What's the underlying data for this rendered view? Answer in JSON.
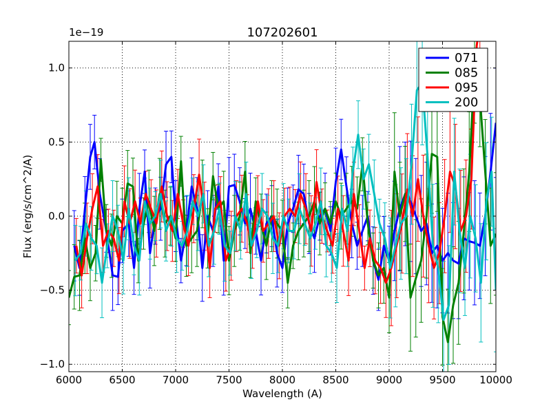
{
  "chart_data": {
    "type": "line",
    "title": "107202601",
    "xlabel": "Wavelength (A)",
    "ylabel": "Flux (erg/s/cm^2/A)",
    "offset_text": "1e−19",
    "xlim": [
      6000,
      10000
    ],
    "ylim": [
      -1.05,
      1.18
    ],
    "xticks": [
      6000,
      6500,
      7000,
      7500,
      8000,
      8500,
      9000,
      9500,
      10000
    ],
    "xtick_labels": [
      "6000",
      "6500",
      "7000",
      "7500",
      "8000",
      "8500",
      "9000",
      "9500",
      "10000"
    ],
    "yticks": [
      -1.0,
      -0.5,
      0.0,
      0.5,
      1.0
    ],
    "ytick_labels": [
      "−1.0",
      "−0.5",
      "0.0",
      "0.5",
      "1.0"
    ],
    "grid": true,
    "legend_position": "top-right",
    "series": [
      {
        "name": "071",
        "color": "#0000ff",
        "x": [
          6050,
          6100,
          6150,
          6200,
          6240,
          6290,
          6350,
          6410,
          6460,
          6500,
          6560,
          6610,
          6660,
          6710,
          6760,
          6810,
          6860,
          6910,
          6960,
          7000,
          7050,
          7100,
          7150,
          7200,
          7250,
          7300,
          7350,
          7400,
          7450,
          7500,
          7550,
          7600,
          7650,
          7700,
          7750,
          7800,
          7850,
          7900,
          7950,
          8000,
          8050,
          8100,
          8150,
          8200,
          8250,
          8300,
          8350,
          8400,
          8450,
          8500,
          8550,
          8600,
          8650,
          8700,
          8750,
          8800,
          8850,
          8900,
          8950,
          9000,
          9050,
          9100,
          9150,
          9200,
          9250,
          9300,
          9350,
          9400,
          9450,
          9500,
          9550,
          9600,
          9650,
          9700,
          9750,
          9800,
          9850,
          9900,
          9950,
          10000
        ],
        "y": [
          -0.2,
          -0.35,
          0.05,
          0.4,
          0.5,
          0.15,
          -0.1,
          -0.4,
          -0.41,
          -0.1,
          -0.05,
          -0.35,
          0.05,
          0.3,
          -0.25,
          0.0,
          0.05,
          0.35,
          0.4,
          0.0,
          -0.3,
          -0.1,
          0.2,
          0.05,
          -0.35,
          0.0,
          -0.1,
          0.2,
          -0.3,
          0.2,
          0.21,
          0.1,
          -0.05,
          0.05,
          -0.1,
          -0.3,
          -0.05,
          0.0,
          -0.25,
          -0.35,
          -0.05,
          0.05,
          0.18,
          0.15,
          -0.05,
          -0.15,
          0.0,
          0.05,
          -0.1,
          0.23,
          0.45,
          0.2,
          -0.05,
          -0.2,
          -0.1,
          0.0,
          -0.3,
          -0.43,
          -0.2,
          -0.3,
          -0.1,
          0.05,
          0.15,
          0.1,
          0.0,
          -0.1,
          -0.05,
          -0.25,
          -0.2,
          -0.3,
          -0.25,
          -0.3,
          -0.32,
          -0.15,
          -0.17,
          -0.18,
          -0.2,
          0.0,
          0.3,
          0.63
        ]
      },
      {
        "name": "085",
        "color": "#008000",
        "x": [
          6000,
          6050,
          6100,
          6150,
          6200,
          6250,
          6300,
          6350,
          6400,
          6450,
          6500,
          6550,
          6600,
          6650,
          6700,
          6750,
          6800,
          6850,
          6900,
          6950,
          7000,
          7050,
          7100,
          7150,
          7200,
          7250,
          7300,
          7350,
          7400,
          7450,
          7500,
          7550,
          7600,
          7650,
          7700,
          7750,
          7800,
          7850,
          7900,
          7950,
          8000,
          8050,
          8100,
          8150,
          8200,
          8250,
          8300,
          8350,
          8400,
          8450,
          8500,
          8550,
          8600,
          8650,
          8700,
          8750,
          8800,
          8850,
          8900,
          8950,
          9000,
          9050,
          9100,
          9150,
          9200,
          9250,
          9300,
          9350,
          9400,
          9450,
          9500,
          9550,
          9600,
          9650,
          9700,
          9750,
          9800,
          9850,
          9900,
          9950,
          10000
        ],
        "y": [
          -0.55,
          -0.41,
          -0.4,
          -0.15,
          -0.35,
          -0.25,
          0.38,
          -0.1,
          -0.2,
          0.0,
          -0.05,
          0.22,
          0.2,
          -0.3,
          -0.05,
          0.1,
          -0.1,
          0.15,
          -0.05,
          0.0,
          -0.15,
          0.37,
          -0.2,
          -0.15,
          -0.1,
          0.15,
          -0.15,
          0.27,
          0.05,
          0.1,
          -0.3,
          -0.1,
          0.0,
          0.3,
          -0.25,
          0.1,
          -0.05,
          -0.2,
          0.0,
          -0.05,
          -0.1,
          -0.45,
          -0.2,
          -0.1,
          -0.05,
          0.0,
          0.1,
          -0.05,
          0.05,
          -0.05,
          0.1,
          0.0,
          0.05,
          0.1,
          0.05,
          0.35,
          -0.05,
          -0.3,
          -0.4,
          -0.35,
          -0.55,
          0.3,
          0.0,
          0.15,
          -0.55,
          -0.42,
          -0.3,
          0.0,
          0.42,
          0.4,
          -0.68,
          -0.85,
          -0.6,
          -0.45,
          -0.1,
          0.3,
          1.0,
          0.8,
          0.3,
          -0.2,
          -0.12
        ]
      },
      {
        "name": "095",
        "color": "#ff0000",
        "x": [
          6070,
          6120,
          6170,
          6220,
          6270,
          6320,
          6370,
          6420,
          6470,
          6520,
          6570,
          6620,
          6670,
          6720,
          6770,
          6820,
          6870,
          6920,
          6970,
          7020,
          7070,
          7120,
          7170,
          7220,
          7270,
          7320,
          7370,
          7420,
          7470,
          7520,
          7570,
          7620,
          7670,
          7720,
          7770,
          7820,
          7870,
          7920,
          7970,
          8020,
          8070,
          8120,
          8170,
          8220,
          8270,
          8320,
          8370,
          8420,
          8470,
          8520,
          8570,
          8620,
          8670,
          8720,
          8770,
          8820,
          8870,
          8920,
          8970,
          9020,
          9070,
          9120,
          9170,
          9220,
          9270,
          9320,
          9370,
          9420,
          9470,
          9520,
          9570,
          9620,
          9670,
          9720,
          9770,
          9820,
          9850
        ],
        "y": [
          -0.2,
          -0.4,
          -0.15,
          0.05,
          0.2,
          -0.2,
          -0.1,
          -0.15,
          -0.3,
          0.1,
          -0.05,
          0.1,
          -0.05,
          0.15,
          0.05,
          -0.05,
          0.2,
          0.0,
          -0.1,
          0.15,
          -0.05,
          -0.2,
          0.05,
          0.28,
          0.0,
          -0.35,
          0.05,
          0.1,
          -0.3,
          -0.2,
          0.0,
          0.05,
          -0.05,
          -0.2,
          0.1,
          -0.1,
          -0.05,
          0.0,
          -0.2,
          0.0,
          0.05,
          0.0,
          0.15,
          0.05,
          -0.1,
          0.23,
          0.0,
          -0.1,
          -0.2,
          0.05,
          -0.1,
          -0.3,
          0.15,
          -0.1,
          -0.35,
          -0.15,
          -0.3,
          -0.35,
          -0.45,
          -0.35,
          -0.2,
          -0.05,
          0.18,
          0.0,
          0.25,
          0.0,
          -0.2,
          -0.35,
          -0.25,
          0.0,
          0.3,
          0.2,
          -0.1,
          0.0,
          0.25,
          1.15,
          1.3
        ]
      },
      {
        "name": "200",
        "color": "#00bfbf",
        "x": [
          6060,
          6110,
          6160,
          6210,
          6260,
          6310,
          6360,
          6410,
          6460,
          6510,
          6560,
          6610,
          6660,
          6710,
          6760,
          6810,
          6860,
          6910,
          6960,
          7010,
          7060,
          7110,
          7160,
          7210,
          7260,
          7310,
          7360,
          7410,
          7460,
          7510,
          7560,
          7610,
          7660,
          7710,
          7760,
          7810,
          7860,
          7910,
          7960,
          8010,
          8060,
          8110,
          8160,
          8210,
          8260,
          8310,
          8360,
          8410,
          8460,
          8510,
          8560,
          8610,
          8660,
          8710,
          8760,
          8810,
          8860,
          8910,
          8960,
          9010,
          9060,
          9110,
          9160,
          9210,
          9260,
          9310,
          9360,
          9410,
          9460,
          9510,
          9560,
          9610,
          9660,
          9710,
          9760,
          9810,
          9860,
          9910,
          9960,
          10000
        ],
        "y": [
          -0.3,
          -0.25,
          -0.05,
          -0.15,
          -0.2,
          -0.45,
          -0.2,
          0.0,
          -0.1,
          -0.3,
          0.05,
          -0.2,
          -0.3,
          0.1,
          -0.05,
          0.0,
          0.15,
          -0.1,
          0.0,
          -0.15,
          -0.2,
          -0.1,
          0.1,
          0.0,
          0.15,
          -0.2,
          -0.1,
          0.05,
          -0.2,
          -0.25,
          0.0,
          -0.1,
          0.15,
          -0.2,
          -0.1,
          0.05,
          0.0,
          -0.15,
          -0.2,
          0.0,
          -0.1,
          -0.1,
          0.05,
          -0.05,
          -0.15,
          -0.05,
          0.1,
          -0.2,
          -0.25,
          -0.35,
          0.05,
          -0.1,
          0.3,
          0.55,
          0.25,
          0.35,
          0.15,
          -0.05,
          -0.15,
          -0.35,
          -0.2,
          -0.05,
          0.0,
          0.35,
          0.85,
          0.9,
          0.4,
          -0.2,
          -0.35,
          -0.7,
          -0.6,
          0.3,
          -0.1,
          -0.35,
          0.0,
          -0.15,
          -0.45,
          0.1,
          0.3,
          -0.5
        ]
      }
    ]
  }
}
